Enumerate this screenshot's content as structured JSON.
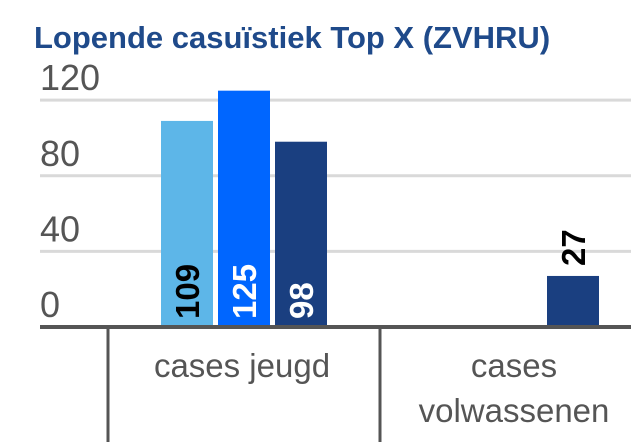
{
  "chart_data": {
    "type": "bar",
    "title": "Lopende casuïstiek Top X (ZVHRU)",
    "categories": [
      [
        "cases jeugd"
      ],
      [
        "cases",
        "volwassenen"
      ]
    ],
    "series": [
      {
        "color": "#5db6e8",
        "label_color": "#000000",
        "values": [
          109,
          null
        ]
      },
      {
        "color": "#0066ff",
        "label_color": "#ffffff",
        "values": [
          125,
          null
        ]
      },
      {
        "color": "#1a3f80",
        "label_color": "#ffffff",
        "values": [
          98,
          27
        ]
      }
    ],
    "ylim": [
      0,
      128
    ],
    "yticks": [
      0,
      40,
      80,
      120
    ],
    "grid": true
  }
}
